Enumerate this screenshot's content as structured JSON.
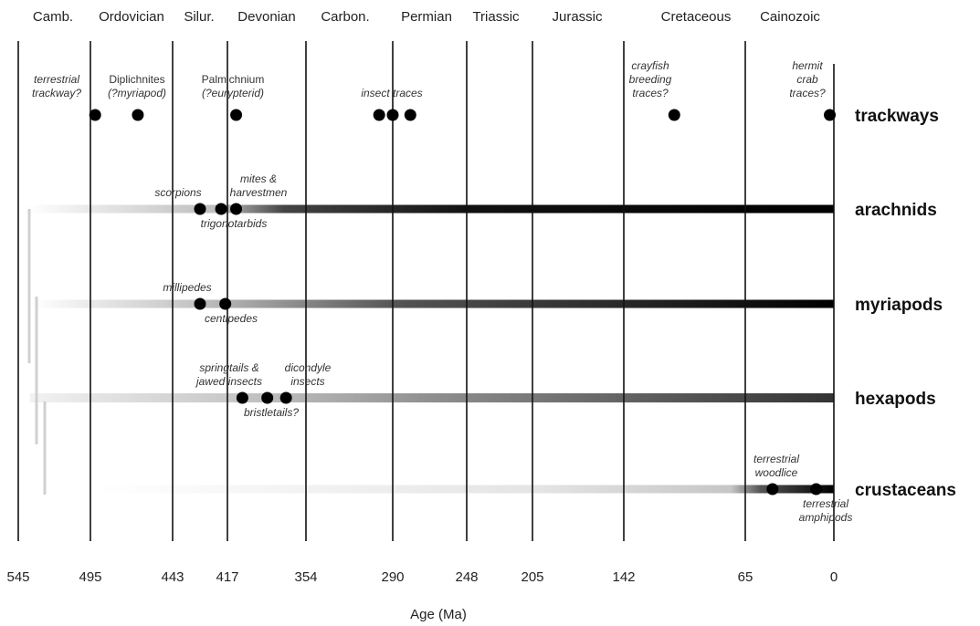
{
  "chart_data": {
    "type": "timeline",
    "xlabel": "Age (Ma)",
    "ticks": [
      545,
      495,
      443,
      417,
      354,
      290,
      248,
      205,
      142,
      65,
      0
    ],
    "boundaries": [
      495,
      443,
      417,
      354,
      290,
      248,
      205,
      142,
      65,
      0
    ],
    "periods": [
      {
        "label": "Camb.",
        "mid": 520
      },
      {
        "label": "Ordovician",
        "mid": 470
      },
      {
        "label": "Silur.",
        "mid": 430
      },
      {
        "label": "Devonian",
        "mid": 386
      },
      {
        "label": "Carbon.",
        "mid": 322
      },
      {
        "label": "Permian",
        "mid": 269
      },
      {
        "label": "Triassic",
        "mid": 226
      },
      {
        "label": "Jurassic",
        "mid": 173
      },
      {
        "label": "Cretaceous",
        "mid": 103
      },
      {
        "label": "Cainozoic",
        "mid": 32
      }
    ],
    "series": [
      {
        "name": "trackways",
        "color": "#000000",
        "events": [
          {
            "age": 492,
            "label": [
              "terrestrial",
              "trackway?"
            ],
            "italic": true
          },
          {
            "age": 465,
            "label": [
              "Diplichnites",
              "(?myriapod)"
            ],
            "italic_lines": [
              false,
              true
            ]
          },
          {
            "age": 410,
            "label": [
              "Palmichnium",
              "(?eurypterid)"
            ],
            "italic_lines": [
              false,
              true
            ]
          },
          {
            "age": 300,
            "label": [
              "insect traces"
            ],
            "italic": true,
            "group_ages": [
              300,
              290,
              280
            ]
          },
          {
            "age": 290
          },
          {
            "age": 280
          },
          {
            "age": 110,
            "label": [
              "crayfish",
              "breeding",
              "traces?"
            ],
            "italic": true
          },
          {
            "age": 3,
            "label": [
              "hermit",
              "crab",
              "traces?"
            ],
            "italic": true
          }
        ]
      },
      {
        "name": "arachnids",
        "bar_start": 540,
        "events": [
          {
            "age": 430,
            "label_above": [
              "scorpions"
            ]
          },
          {
            "age": 420,
            "label_below": [
              "trigonotarbids"
            ]
          },
          {
            "age": 410,
            "label_above": [
              "mites &",
              "harvestmen"
            ]
          }
        ]
      },
      {
        "name": "myriapods",
        "bar_start": 535,
        "events": [
          {
            "age": 430,
            "label_above": [
              "millipedes"
            ]
          },
          {
            "age": 418,
            "label_below": [
              "centipedes"
            ]
          }
        ]
      },
      {
        "name": "hexapods",
        "bar_start": 537,
        "events": [
          {
            "age": 405,
            "label_above": [
              "springtails &",
              "jawed insects"
            ]
          },
          {
            "age": 385,
            "label_below": [
              "bristletails?"
            ]
          },
          {
            "age": 370,
            "label_above": [
              "dicondyle",
              "insects"
            ]
          }
        ]
      },
      {
        "name": "crustaceans",
        "bar_start": 490,
        "events": [
          {
            "age": 45,
            "label_above": [
              "terrestrial",
              "woodlice"
            ]
          },
          {
            "age": 13,
            "label_below": [
              "terrestrial",
              "amphipods"
            ]
          }
        ]
      }
    ],
    "grid": true
  }
}
